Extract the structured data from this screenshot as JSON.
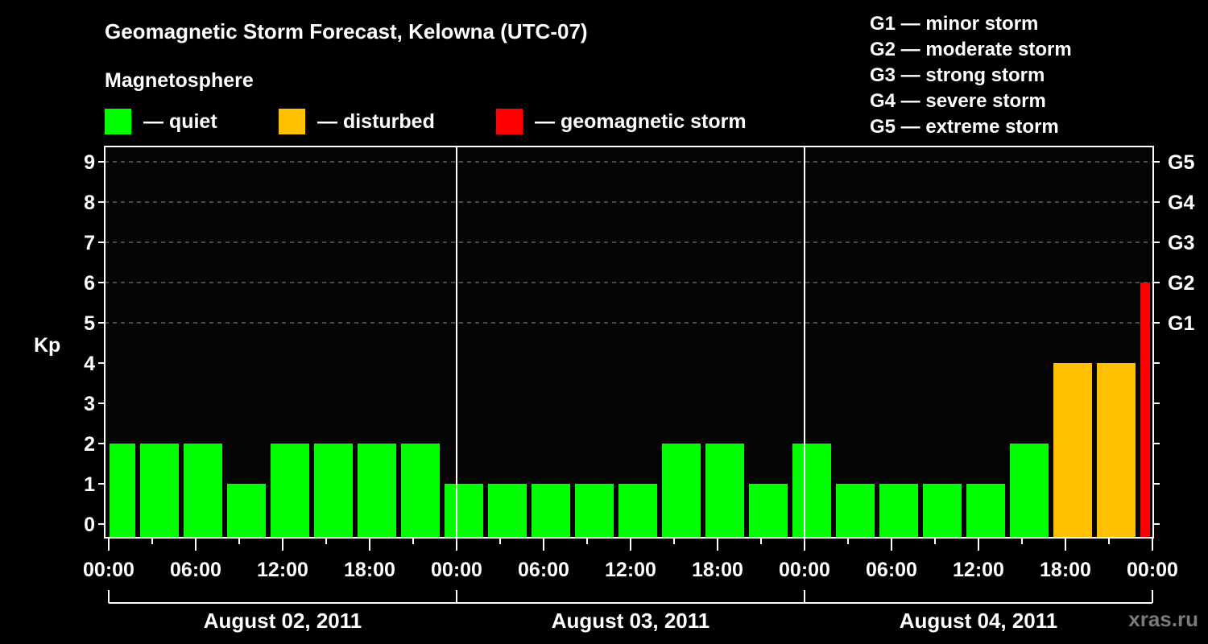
{
  "header": {
    "title": "Geomagnetic Storm Forecast, Kelowna (UTC-07)",
    "subtitle": "Magnetosphere"
  },
  "legend": [
    {
      "label": "— quiet",
      "color": "#00ff00",
      "x": 130
    },
    {
      "label": "— disturbed",
      "color": "#ffc000",
      "x": 346
    },
    {
      "label": "— geomagnetic storm",
      "color": "#ff0000",
      "x": 616
    }
  ],
  "g_scale": [
    "G1 — minor storm",
    "G2 — moderate storm",
    "G3 — strong storm",
    "G4 — severe storm",
    "G5 — extreme storm"
  ],
  "watermark": "xras.ru",
  "colors": {
    "quiet": "#00ff00",
    "disturbed": "#ffc000",
    "storm": "#ff0000",
    "grid": "#8a8a8a",
    "axis": "#ffffff",
    "plot_bg": "#050505"
  },
  "chart_data": {
    "type": "bar",
    "title": "Geomagnetic Storm Forecast, Kelowna (UTC-07)",
    "xlabel": "",
    "ylabel": "Kp",
    "ylim": [
      0,
      9
    ],
    "yticks": [
      0,
      1,
      2,
      3,
      4,
      5,
      6,
      7,
      8,
      9
    ],
    "right_axis_labels": {
      "5": "G1",
      "6": "G2",
      "7": "G3",
      "8": "G4",
      "9": "G5"
    },
    "grid": "dashed horizontal at Kp 5-9",
    "interval_hours": 3,
    "xtick_labels": [
      "00:00",
      "06:00",
      "12:00",
      "18:00",
      "00:00",
      "06:00",
      "12:00",
      "18:00",
      "00:00",
      "06:00",
      "12:00",
      "18:00",
      "00:00"
    ],
    "days": [
      "August 02, 2011",
      "August 03, 2011",
      "August 04, 2011"
    ],
    "bars": [
      {
        "start": "Aug 02 00:00",
        "kp": 2,
        "status": "quiet"
      },
      {
        "start": "Aug 02 03:00",
        "kp": 2,
        "status": "quiet"
      },
      {
        "start": "Aug 02 06:00",
        "kp": 2,
        "status": "quiet"
      },
      {
        "start": "Aug 02 09:00",
        "kp": 1,
        "status": "quiet"
      },
      {
        "start": "Aug 02 12:00",
        "kp": 2,
        "status": "quiet"
      },
      {
        "start": "Aug 02 15:00",
        "kp": 2,
        "status": "quiet"
      },
      {
        "start": "Aug 02 18:00",
        "kp": 2,
        "status": "quiet"
      },
      {
        "start": "Aug 02 21:00",
        "kp": 2,
        "status": "quiet"
      },
      {
        "start": "Aug 03 00:00",
        "kp": 1,
        "status": "quiet"
      },
      {
        "start": "Aug 03 03:00",
        "kp": 1,
        "status": "quiet"
      },
      {
        "start": "Aug 03 06:00",
        "kp": 1,
        "status": "quiet"
      },
      {
        "start": "Aug 03 09:00",
        "kp": 1,
        "status": "quiet"
      },
      {
        "start": "Aug 03 12:00",
        "kp": 1,
        "status": "quiet"
      },
      {
        "start": "Aug 03 15:00",
        "kp": 2,
        "status": "quiet"
      },
      {
        "start": "Aug 03 18:00",
        "kp": 2,
        "status": "quiet"
      },
      {
        "start": "Aug 03 21:00",
        "kp": 1,
        "status": "quiet"
      },
      {
        "start": "Aug 04 00:00",
        "kp": 2,
        "status": "quiet"
      },
      {
        "start": "Aug 04 03:00",
        "kp": 1,
        "status": "quiet"
      },
      {
        "start": "Aug 04 06:00",
        "kp": 1,
        "status": "quiet"
      },
      {
        "start": "Aug 04 09:00",
        "kp": 1,
        "status": "quiet"
      },
      {
        "start": "Aug 04 12:00",
        "kp": 1,
        "status": "quiet"
      },
      {
        "start": "Aug 04 15:00",
        "kp": 2,
        "status": "quiet"
      },
      {
        "start": "Aug 04 18:00",
        "kp": 4,
        "status": "disturbed"
      },
      {
        "start": "Aug 04 21:00",
        "kp": 4,
        "status": "disturbed"
      },
      {
        "start": "Aug 05 00:00",
        "kp": 6,
        "status": "storm"
      }
    ],
    "bar_pixels": [
      [
        136,
        168
      ],
      [
        174,
        222
      ],
      [
        228,
        276
      ],
      [
        282,
        330
      ],
      [
        336,
        384
      ],
      [
        390,
        438
      ],
      [
        444,
        492
      ],
      [
        498,
        546
      ],
      [
        552,
        600
      ],
      [
        606,
        654
      ],
      [
        660,
        708
      ],
      [
        714,
        762
      ],
      [
        768,
        816
      ],
      [
        822,
        870
      ],
      [
        876,
        924
      ],
      [
        930,
        978
      ],
      [
        984,
        1032
      ],
      [
        1038,
        1086
      ],
      [
        1092,
        1140
      ],
      [
        1146,
        1194
      ],
      [
        1200,
        1248
      ],
      [
        1254,
        1302
      ],
      [
        1308,
        1356
      ],
      [
        1362,
        1410
      ],
      [
        1416,
        1428
      ]
    ]
  }
}
